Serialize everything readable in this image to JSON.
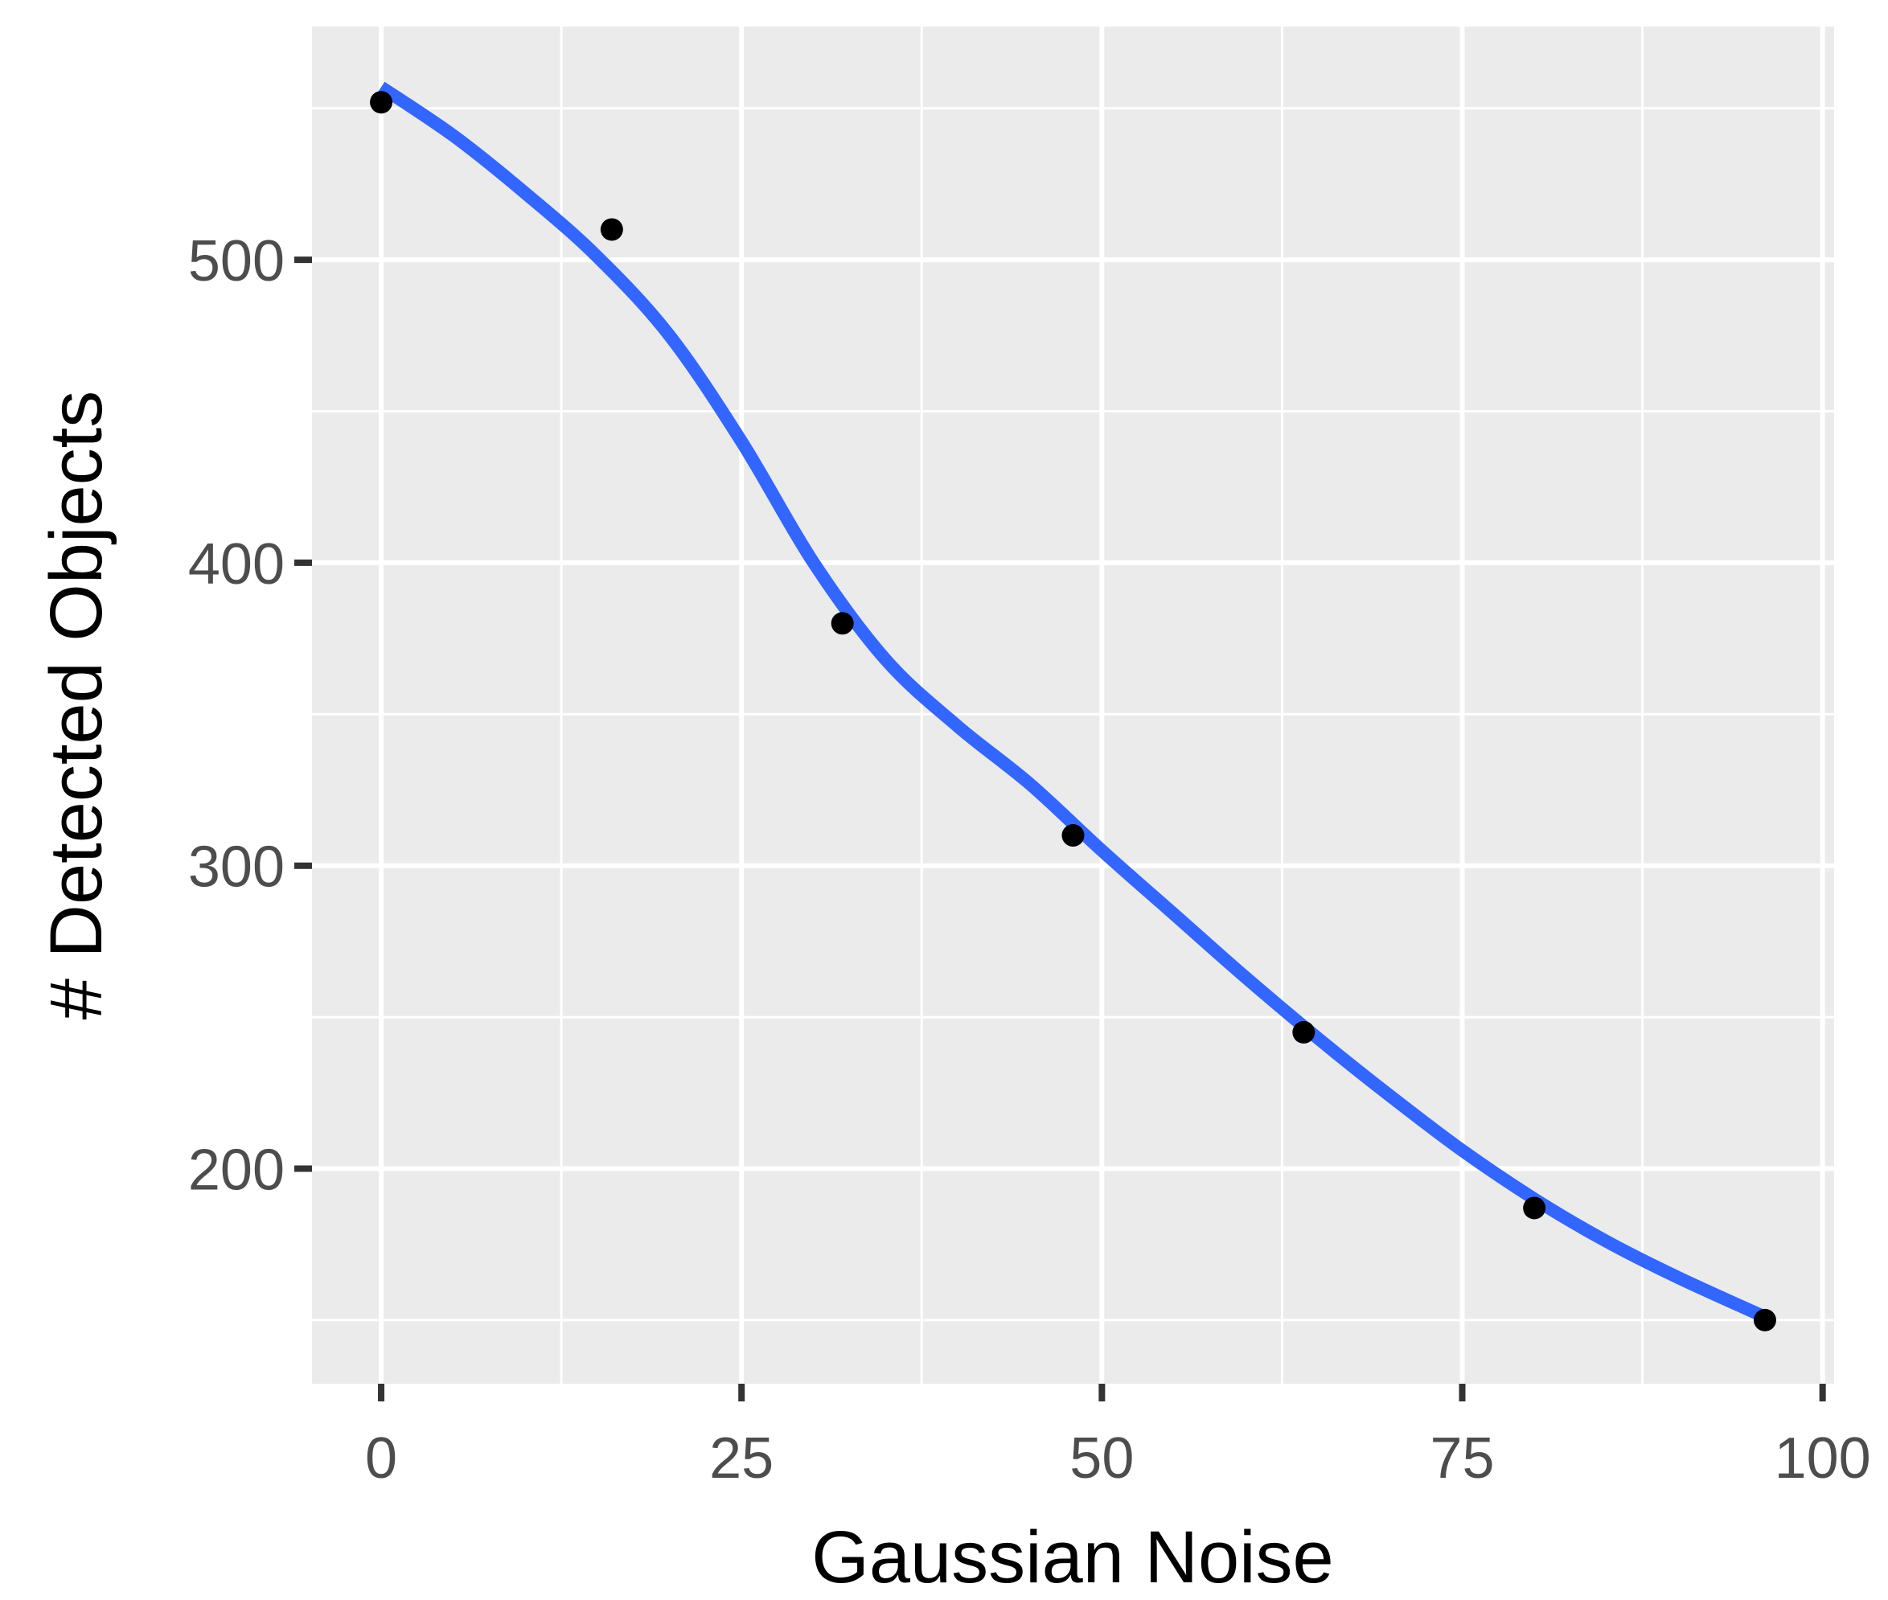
{
  "chart_data": {
    "type": "scatter",
    "title": "",
    "xlabel": "Gaussian Noise",
    "ylabel": "# Detected Objects",
    "xlim": [
      -4.8,
      100.8
    ],
    "ylim": [
      129,
      577
    ],
    "x_ticks": [
      0,
      25,
      50,
      75,
      100
    ],
    "y_ticks": [
      200,
      300,
      400,
      500
    ],
    "x_minor_gridlines": [
      12.5,
      37.5,
      62.5,
      87.5
    ],
    "y_minor_gridlines": [
      150,
      250,
      350,
      450,
      550
    ],
    "grid": true,
    "legend": "none",
    "series": [
      {
        "kind": "points",
        "x": [
          0,
          16,
          32,
          48,
          64,
          80,
          96
        ],
        "y": [
          552,
          510,
          380,
          310,
          245,
          187,
          150
        ]
      },
      {
        "kind": "smooth-line",
        "x": [
          0,
          5,
          10,
          15,
          20,
          25,
          30,
          35,
          40,
          45,
          50,
          55,
          60,
          65,
          70,
          75,
          80,
          85,
          90,
          96
        ],
        "y": [
          557,
          541,
          522,
          501,
          475,
          440,
          400,
          368,
          346,
          327,
          305,
          284,
          263,
          243,
          224,
          206,
          190,
          176,
          164,
          151
        ]
      }
    ],
    "colors": {
      "panel_background": "#ebebeb",
      "gridline": "#ffffff",
      "points": "#000000",
      "line": "#3366ff",
      "axis_ticks": "#333333",
      "tick_labels": "#4d4d4d"
    }
  }
}
